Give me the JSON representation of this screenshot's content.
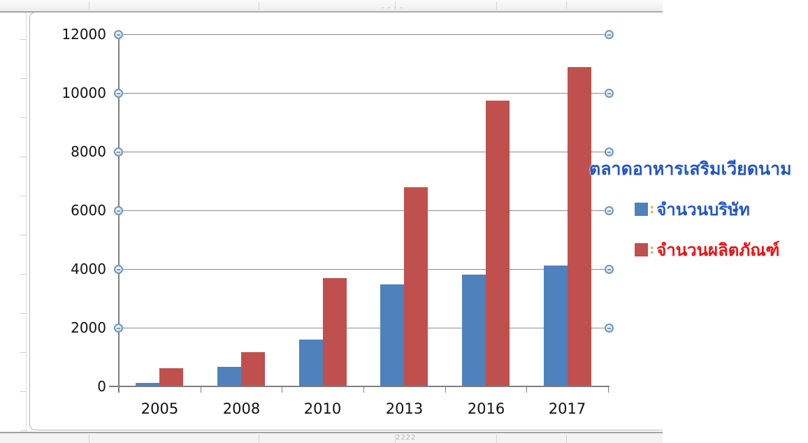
{
  "chart_data": {
    "type": "bar",
    "title": "ตลาดอาหารเสริมเวียดนาม",
    "categories": [
      "2005",
      "2008",
      "2010",
      "2013",
      "2016",
      "2017"
    ],
    "series": [
      {
        "name": "จำนวนบริษัท",
        "color": "#4f81bd",
        "label_color": "#2456c8",
        "values": [
          130,
          670,
          1600,
          3480,
          3810,
          4120
        ]
      },
      {
        "name": "จำนวนผลิตภัณฑ์",
        "color": "#c0504d",
        "label_color": "#ee1111",
        "values": [
          620,
          1170,
          3700,
          6790,
          9740,
          10880
        ]
      }
    ],
    "xlabel": "",
    "ylabel": "",
    "ylim": [
      0,
      12000
    ],
    "yticks": [
      0,
      2000,
      4000,
      6000,
      8000,
      10000,
      12000
    ],
    "grid": true,
    "legend_position": "right",
    "legend_separator": ":"
  },
  "colors": {
    "gridline": "#8e8e8e",
    "axis": "#7f7f7f",
    "handle_border": "#7195bd",
    "bar_blue": "#4f81bd",
    "bar_red": "#c0504d",
    "legend_title_blue": "#2456c8",
    "legend_red": "#ee1111"
  },
  "spreadsheet": {
    "top_cell_remnant": "- - - -",
    "bottom_cell_remnant": "2222"
  }
}
